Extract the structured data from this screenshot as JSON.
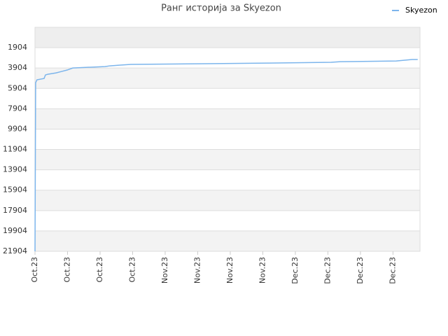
{
  "chart_data": {
    "type": "line",
    "title": "Ранг историја за Skyezon",
    "x": [
      0,
      0.2,
      0.6,
      2.8,
      3.2,
      3.9,
      6.5,
      8.2,
      9.9,
      11.6,
      21.5,
      23.0,
      26.2,
      29.5,
      49.9,
      71.8,
      91.0,
      93.8,
      111.0,
      115.9,
      117.6
    ],
    "series": [
      {
        "name": "Skyezon",
        "color": "#7cb5ec",
        "values": [
          21904,
          5340,
          5065,
          4930,
          4585,
          4520,
          4380,
          4240,
          4100,
          3900,
          3760,
          3690,
          3620,
          3550,
          3485,
          3415,
          3345,
          3280,
          3210,
          3070,
          3070
        ]
      }
    ],
    "xlim": [
      0,
      118.3
    ],
    "xticks": [
      {
        "value": 0,
        "label": "Oct.23"
      },
      {
        "value": 10,
        "label": "Oct.23"
      },
      {
        "value": 20,
        "label": "Oct.23"
      },
      {
        "value": 30,
        "label": "Oct.23"
      },
      {
        "value": 40,
        "label": "Nov.23"
      },
      {
        "value": 50,
        "label": "Nov.23"
      },
      {
        "value": 60,
        "label": "Nov.23"
      },
      {
        "value": 70,
        "label": "Nov.23"
      },
      {
        "value": 80,
        "label": "Dec.23"
      },
      {
        "value": 90,
        "label": "Dec.23"
      },
      {
        "value": 100,
        "label": "Dec.23"
      },
      {
        "value": 110,
        "label": "Dec.23"
      }
    ],
    "ylim": [
      21904,
      -96
    ],
    "yticks": [
      1904,
      3904,
      5904,
      7904,
      9904,
      11904,
      13904,
      15904,
      17904,
      19904,
      21904
    ],
    "grid": true,
    "legend": "top-right"
  }
}
